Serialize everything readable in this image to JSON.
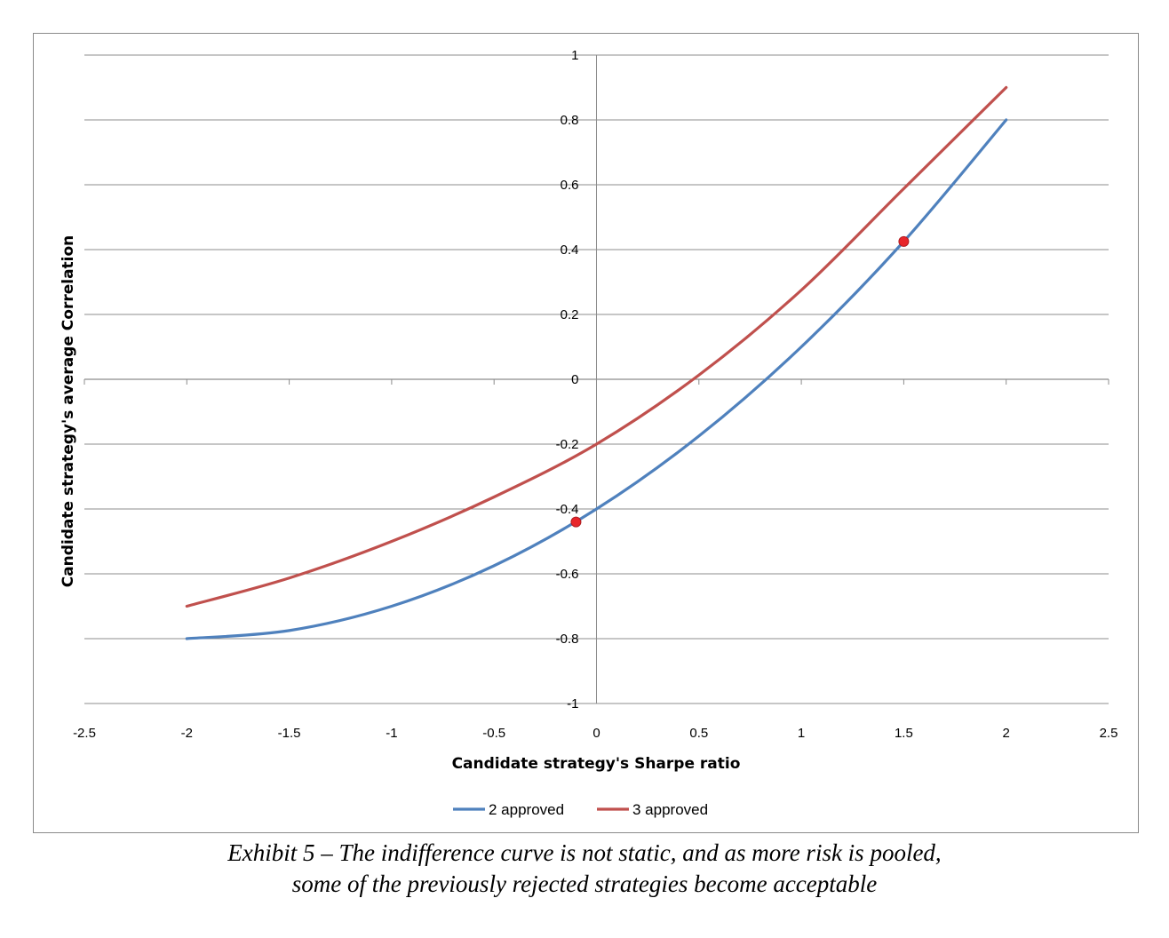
{
  "chart_data": {
    "type": "line",
    "title": "",
    "xlabel": "Candidate strategy's Sharpe ratio",
    "ylabel": "Candidate strategy's average Correlation",
    "xlim": [
      -2.5,
      2.5
    ],
    "ylim": [
      -1,
      1
    ],
    "x_ticks": [
      "-2.5",
      "-2",
      "-1.5",
      "-1",
      "-0.5",
      "0",
      "0.5",
      "1",
      "1.5",
      "2",
      "2.5"
    ],
    "y_ticks": [
      "1",
      "0.8",
      "0.6",
      "0.4",
      "0.2",
      "0",
      "-0.2",
      "-0.4",
      "-0.6",
      "-0.8",
      "-1"
    ],
    "grid": "horizontal",
    "legend_position": "bottom",
    "series": [
      {
        "name": "2 approved",
        "color": "#4f81bd",
        "x": [
          -2,
          -1.5,
          -1,
          -0.5,
          0,
          0.5,
          1,
          1.5,
          2
        ],
        "y": [
          -0.8,
          -0.775,
          -0.7,
          -0.575,
          -0.4,
          -0.175,
          0.1,
          0.425,
          0.8
        ]
      },
      {
        "name": "3 approved",
        "color": "#c0504d",
        "x": [
          -2,
          -1.5,
          -1,
          -0.5,
          0,
          0.5,
          1,
          1.5,
          2
        ],
        "y": [
          -0.7,
          -0.613,
          -0.5,
          -0.363,
          -0.2,
          0.013,
          0.275,
          0.588,
          0.9
        ]
      }
    ],
    "points": [
      {
        "name": "rejected-candidate-point",
        "x": -0.1,
        "y": -0.44,
        "color": "#e8262b"
      },
      {
        "name": "accepted-candidate-point",
        "x": 1.5,
        "y": 0.425,
        "color": "#e8262b"
      }
    ]
  },
  "caption": {
    "line1": "Exhibit 5 – The indifference curve is not static, and as more risk is pooled,",
    "line2": "some of the previously rejected strategies become acceptable"
  }
}
